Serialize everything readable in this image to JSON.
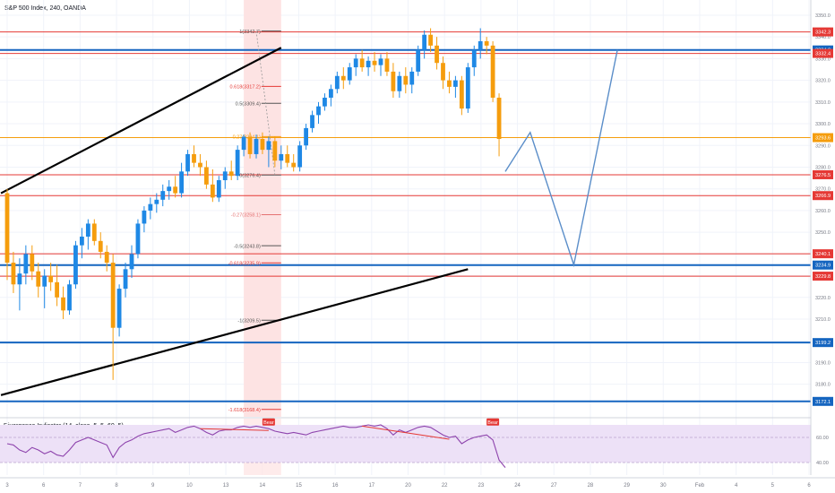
{
  "header": {
    "title": "S&P 500 Index, 240, OANDA"
  },
  "indicator": {
    "title": "Divergence Indicator (14, close, 5, 5, 60, 5)",
    "bear_label": "Bear"
  },
  "colors": {
    "bull": "#1e88e5",
    "bear": "#f59d0d",
    "red_line": "#e53935",
    "blue_line": "#1565c0",
    "projection": "#5b8ec9",
    "rsi": "#8e44ad",
    "rsi_band": "#ede1f7",
    "highlight": "#fde3e3"
  },
  "chart_data": {
    "type": "candlestick",
    "symbol": "S&P 500 Index",
    "interval": "240",
    "source": "OANDA",
    "ylim": [
      3165,
      3357
    ],
    "y_ticks": [
      3350.0,
      3340.0,
      3330.0,
      3320.0,
      3310.0,
      3300.0,
      3290.0,
      3280.0,
      3270.0,
      3260.0,
      3250.0,
      3240.0,
      3230.0,
      3220.0,
      3210.0,
      3200.0,
      3190.0,
      3180.0
    ],
    "x_ticks": [
      "3",
      "6",
      "7",
      "8",
      "9",
      "10",
      "13",
      "14",
      "15",
      "16",
      "17",
      "20",
      "22",
      "23",
      "24",
      "27",
      "28",
      "29",
      "30",
      "Feb",
      "4",
      "5",
      "6"
    ],
    "price_labels": [
      {
        "value": "3342.3",
        "kind": "red"
      },
      {
        "value": "3334.0",
        "kind": "blue"
      },
      {
        "value": "3332.4",
        "kind": "red"
      },
      {
        "value": "3293.6",
        "kind": "orange"
      },
      {
        "value": "3276.5",
        "kind": "red"
      },
      {
        "value": "3266.9",
        "kind": "red"
      },
      {
        "value": "3240.1",
        "kind": "red"
      },
      {
        "value": "3234.9",
        "kind": "blue"
      },
      {
        "value": "3229.8",
        "kind": "red"
      },
      {
        "value": "3199.2",
        "kind": "blue"
      },
      {
        "value": "3172.1",
        "kind": "blue"
      }
    ],
    "horizontal_lines": [
      {
        "price": 3342.3,
        "kind": "red"
      },
      {
        "price": 3334.0,
        "kind": "blue"
      },
      {
        "price": 3332.4,
        "kind": "red"
      },
      {
        "price": 3293.6,
        "kind": "orange"
      },
      {
        "price": 3276.5,
        "kind": "red"
      },
      {
        "price": 3266.9,
        "kind": "red"
      },
      {
        "price": 3240.1,
        "kind": "red"
      },
      {
        "price": 3234.9,
        "kind": "blue"
      },
      {
        "price": 3229.8,
        "kind": "red"
      },
      {
        "price": 3199.2,
        "kind": "blue"
      },
      {
        "price": 3172.1,
        "kind": "blue"
      }
    ],
    "fib_levels": [
      {
        "label": "1(3342.7)",
        "price": 3342.7,
        "color": "#555555"
      },
      {
        "label": "0.618(3317.2)",
        "price": 3317.2,
        "color": "#e53935"
      },
      {
        "label": "0.5(3309.4)",
        "price": 3309.4,
        "color": "#555555"
      },
      {
        "label": "-0.27(3294.1)",
        "price": 3294.1,
        "color": "#f59d0d"
      },
      {
        "label": "0(3276.4)",
        "price": 3276.4,
        "color": "#555555"
      },
      {
        "label": "-0.27(3258.1)",
        "price": 3258.1,
        "color": "#e57373"
      },
      {
        "label": "-0.5(3243.8)",
        "price": 3243.8,
        "color": "#555555"
      },
      {
        "label": "-0.618(3235.9)",
        "price": 3235.9,
        "color": "#e53935"
      },
      {
        "label": "-1(3209.5)",
        "price": 3209.5,
        "color": "#555555"
      },
      {
        "label": "-1.618(3168.4)",
        "price": 3168.4,
        "color": "#e53935"
      }
    ],
    "candles": [
      {
        "o": 3268,
        "h": 3270,
        "l": 3228,
        "c": 3236
      },
      {
        "o": 3236,
        "h": 3241,
        "l": 3222,
        "c": 3226
      },
      {
        "o": 3226,
        "h": 3238,
        "l": 3214,
        "c": 3231
      },
      {
        "o": 3231,
        "h": 3244,
        "l": 3226,
        "c": 3240
      },
      {
        "o": 3240,
        "h": 3244,
        "l": 3228,
        "c": 3232
      },
      {
        "o": 3232,
        "h": 3236,
        "l": 3220,
        "c": 3225
      },
      {
        "o": 3225,
        "h": 3233,
        "l": 3215,
        "c": 3230
      },
      {
        "o": 3230,
        "h": 3236,
        "l": 3223,
        "c": 3227
      },
      {
        "o": 3227,
        "h": 3235,
        "l": 3216,
        "c": 3220
      },
      {
        "o": 3220,
        "h": 3225,
        "l": 3210,
        "c": 3214
      },
      {
        "o": 3214,
        "h": 3228,
        "l": 3212,
        "c": 3226
      },
      {
        "o": 3226,
        "h": 3246,
        "l": 3224,
        "c": 3244
      },
      {
        "o": 3244,
        "h": 3252,
        "l": 3238,
        "c": 3248
      },
      {
        "o": 3248,
        "h": 3256,
        "l": 3242,
        "c": 3254
      },
      {
        "o": 3254,
        "h": 3256,
        "l": 3244,
        "c": 3246
      },
      {
        "o": 3246,
        "h": 3250,
        "l": 3238,
        "c": 3241
      },
      {
        "o": 3241,
        "h": 3244,
        "l": 3232,
        "c": 3236
      },
      {
        "o": 3236,
        "h": 3240,
        "l": 3182,
        "c": 3206
      },
      {
        "o": 3206,
        "h": 3226,
        "l": 3202,
        "c": 3224
      },
      {
        "o": 3224,
        "h": 3236,
        "l": 3220,
        "c": 3233
      },
      {
        "o": 3233,
        "h": 3244,
        "l": 3229,
        "c": 3240
      },
      {
        "o": 3240,
        "h": 3256,
        "l": 3238,
        "c": 3254
      },
      {
        "o": 3254,
        "h": 3262,
        "l": 3250,
        "c": 3260
      },
      {
        "o": 3260,
        "h": 3266,
        "l": 3256,
        "c": 3263
      },
      {
        "o": 3263,
        "h": 3268,
        "l": 3259,
        "c": 3265
      },
      {
        "o": 3265,
        "h": 3272,
        "l": 3262,
        "c": 3269
      },
      {
        "o": 3269,
        "h": 3274,
        "l": 3265,
        "c": 3271
      },
      {
        "o": 3271,
        "h": 3276,
        "l": 3266,
        "c": 3268
      },
      {
        "o": 3268,
        "h": 3282,
        "l": 3266,
        "c": 3278
      },
      {
        "o": 3278,
        "h": 3288,
        "l": 3276,
        "c": 3286
      },
      {
        "o": 3286,
        "h": 3290,
        "l": 3280,
        "c": 3282
      },
      {
        "o": 3282,
        "h": 3286,
        "l": 3276,
        "c": 3280
      },
      {
        "o": 3280,
        "h": 3283,
        "l": 3270,
        "c": 3272
      },
      {
        "o": 3272,
        "h": 3279,
        "l": 3264,
        "c": 3266
      },
      {
        "o": 3266,
        "h": 3276,
        "l": 3264,
        "c": 3274
      },
      {
        "o": 3274,
        "h": 3280,
        "l": 3270,
        "c": 3278
      },
      {
        "o": 3278,
        "h": 3283,
        "l": 3274,
        "c": 3276
      },
      {
        "o": 3276,
        "h": 3290,
        "l": 3274,
        "c": 3288
      },
      {
        "o": 3288,
        "h": 3295,
        "l": 3285,
        "c": 3294
      },
      {
        "o": 3294,
        "h": 3296,
        "l": 3284,
        "c": 3286
      },
      {
        "o": 3286,
        "h": 3295,
        "l": 3284,
        "c": 3293
      },
      {
        "o": 3293,
        "h": 3296,
        "l": 3286,
        "c": 3288
      },
      {
        "o": 3288,
        "h": 3294,
        "l": 3280,
        "c": 3292
      },
      {
        "o": 3292,
        "h": 3294,
        "l": 3280,
        "c": 3283
      },
      {
        "o": 3283,
        "h": 3290,
        "l": 3279,
        "c": 3286
      },
      {
        "o": 3286,
        "h": 3290,
        "l": 3280,
        "c": 3282
      },
      {
        "o": 3282,
        "h": 3286,
        "l": 3278,
        "c": 3280
      },
      {
        "o": 3280,
        "h": 3292,
        "l": 3278,
        "c": 3290
      },
      {
        "o": 3290,
        "h": 3300,
        "l": 3288,
        "c": 3298
      },
      {
        "o": 3298,
        "h": 3306,
        "l": 3296,
        "c": 3304
      },
      {
        "o": 3304,
        "h": 3310,
        "l": 3300,
        "c": 3308
      },
      {
        "o": 3308,
        "h": 3314,
        "l": 3306,
        "c": 3312
      },
      {
        "o": 3312,
        "h": 3318,
        "l": 3308,
        "c": 3316
      },
      {
        "o": 3316,
        "h": 3324,
        "l": 3314,
        "c": 3322
      },
      {
        "o": 3322,
        "h": 3326,
        "l": 3316,
        "c": 3320
      },
      {
        "o": 3320,
        "h": 3328,
        "l": 3318,
        "c": 3326
      },
      {
        "o": 3326,
        "h": 3332,
        "l": 3322,
        "c": 3330
      },
      {
        "o": 3330,
        "h": 3334,
        "l": 3324,
        "c": 3326
      },
      {
        "o": 3326,
        "h": 3331,
        "l": 3322,
        "c": 3329
      },
      {
        "o": 3329,
        "h": 3333,
        "l": 3324,
        "c": 3327
      },
      {
        "o": 3327,
        "h": 3332,
        "l": 3322,
        "c": 3330
      },
      {
        "o": 3330,
        "h": 3333,
        "l": 3322,
        "c": 3324
      },
      {
        "o": 3324,
        "h": 3328,
        "l": 3312,
        "c": 3315
      },
      {
        "o": 3315,
        "h": 3324,
        "l": 3312,
        "c": 3322
      },
      {
        "o": 3322,
        "h": 3326,
        "l": 3314,
        "c": 3318
      },
      {
        "o": 3318,
        "h": 3326,
        "l": 3314,
        "c": 3324
      },
      {
        "o": 3324,
        "h": 3336,
        "l": 3322,
        "c": 3334
      },
      {
        "o": 3334,
        "h": 3343,
        "l": 3330,
        "c": 3341
      },
      {
        "o": 3341,
        "h": 3344,
        "l": 3333,
        "c": 3336
      },
      {
        "o": 3336,
        "h": 3340,
        "l": 3325,
        "c": 3328
      },
      {
        "o": 3328,
        "h": 3331,
        "l": 3316,
        "c": 3320
      },
      {
        "o": 3320,
        "h": 3324,
        "l": 3314,
        "c": 3317
      },
      {
        "o": 3317,
        "h": 3322,
        "l": 3312,
        "c": 3320
      },
      {
        "o": 3320,
        "h": 3322,
        "l": 3304,
        "c": 3307
      },
      {
        "o": 3307,
        "h": 3328,
        "l": 3305,
        "c": 3326
      },
      {
        "o": 3326,
        "h": 3336,
        "l": 3322,
        "c": 3334
      },
      {
        "o": 3334,
        "h": 3344,
        "l": 3330,
        "c": 3338
      },
      {
        "o": 3338,
        "h": 3340,
        "l": 3332,
        "c": 3336
      },
      {
        "o": 3336,
        "h": 3338,
        "l": 3310,
        "c": 3312
      },
      {
        "o": 3312,
        "h": 3314,
        "l": 3285,
        "c": 3293
      }
    ],
    "trendlines": [
      {
        "from": {
          "bar": -1,
          "price": 3268
        },
        "to": {
          "bar": 44,
          "price": 3335
        }
      },
      {
        "from": {
          "bar": -1,
          "price": 3175
        },
        "to": {
          "bar": 74,
          "price": 3233
        }
      }
    ],
    "projection": [
      {
        "bar": 80,
        "price": 3278
      },
      {
        "bar": 84,
        "price": 3296
      },
      {
        "bar": 91,
        "price": 3235
      },
      {
        "bar": 98,
        "price": 3334
      }
    ],
    "indicator": {
      "name": "Divergence Indicator",
      "ylim": [
        30,
        75
      ],
      "levels": [
        60.0,
        40.0
      ],
      "band": [
        40,
        70
      ],
      "values": [
        55,
        54,
        50,
        48,
        52,
        50,
        47,
        49,
        46,
        45,
        50,
        56,
        58,
        60,
        58,
        56,
        54,
        44,
        52,
        56,
        58,
        61,
        63,
        64,
        65,
        66,
        67,
        64,
        66,
        68,
        69,
        67,
        64,
        62,
        65,
        66,
        66,
        68,
        69,
        68,
        69,
        68,
        67,
        65,
        64,
        63,
        64,
        63,
        62,
        64,
        65,
        66,
        67,
        68,
        69,
        68,
        68,
        69,
        70,
        69,
        70,
        67,
        62,
        66,
        64,
        66,
        68,
        69,
        68,
        65,
        62,
        60,
        61,
        55,
        58,
        60,
        61,
        62,
        58,
        42,
        36
      ]
    },
    "bear_signals": [
      {
        "bar": 42,
        "label": "Bear"
      },
      {
        "bar": 78,
        "label": "Bear"
      }
    ],
    "highlight_zone": {
      "from_bar": 38,
      "to_bar": 44
    }
  }
}
